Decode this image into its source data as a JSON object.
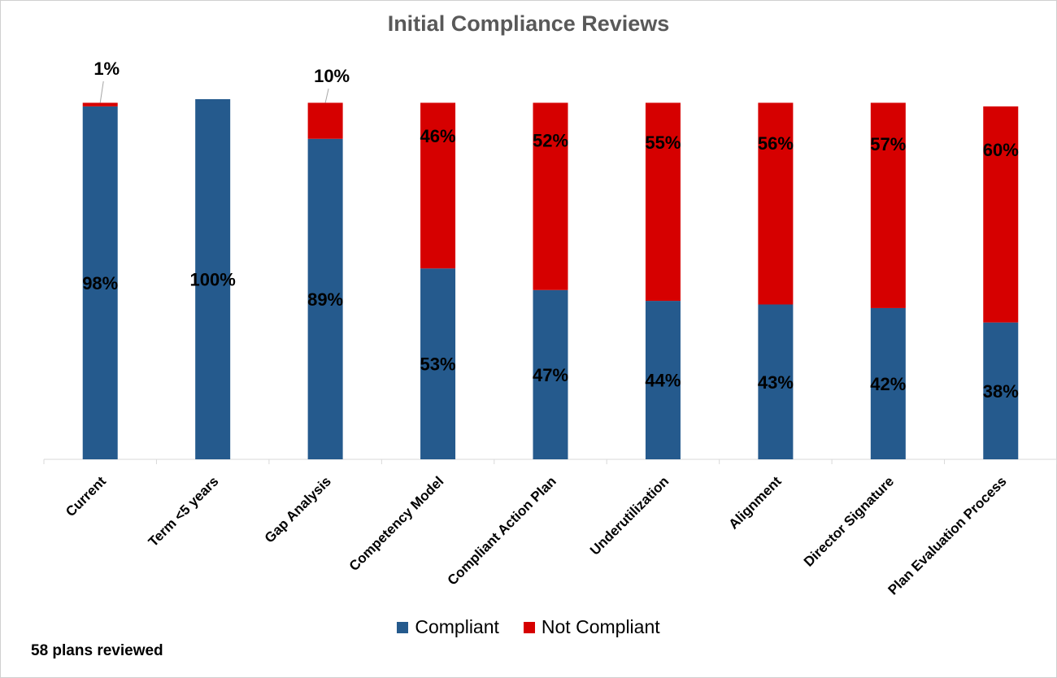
{
  "title": "Initial Compliance Reviews",
  "footnote": "58 plans reviewed",
  "colors": {
    "compliant": "#255a8d",
    "not_compliant": "#d60000"
  },
  "legend": {
    "compliant": "Compliant",
    "not_compliant": "Not Compliant"
  },
  "chart_data": {
    "type": "bar",
    "stacked": true,
    "title": "Initial Compliance Reviews",
    "categories": [
      "Current",
      "Term <5 years",
      "Gap Analysis",
      "Competency Model",
      "Compliant Action Plan",
      "Underutilization",
      "Alignment",
      "Director Signature",
      "Plan Evaluation Process"
    ],
    "series": [
      {
        "name": "Compliant",
        "values": [
          98,
          100,
          89,
          53,
          47,
          44,
          43,
          42,
          38
        ],
        "labels": [
          "98%",
          "100%",
          "89%",
          "53%",
          "47%",
          "44%",
          "43%",
          "42%",
          "38%"
        ]
      },
      {
        "name": "Not Compliant",
        "values": [
          1,
          0,
          10,
          46,
          52,
          55,
          56,
          57,
          60
        ],
        "labels": [
          "1%",
          "",
          "10%",
          "46%",
          "52%",
          "55%",
          "56%",
          "57%",
          "60%"
        ]
      }
    ],
    "ylim": [
      0,
      100
    ],
    "grid": false,
    "legend_position": "bottom"
  }
}
